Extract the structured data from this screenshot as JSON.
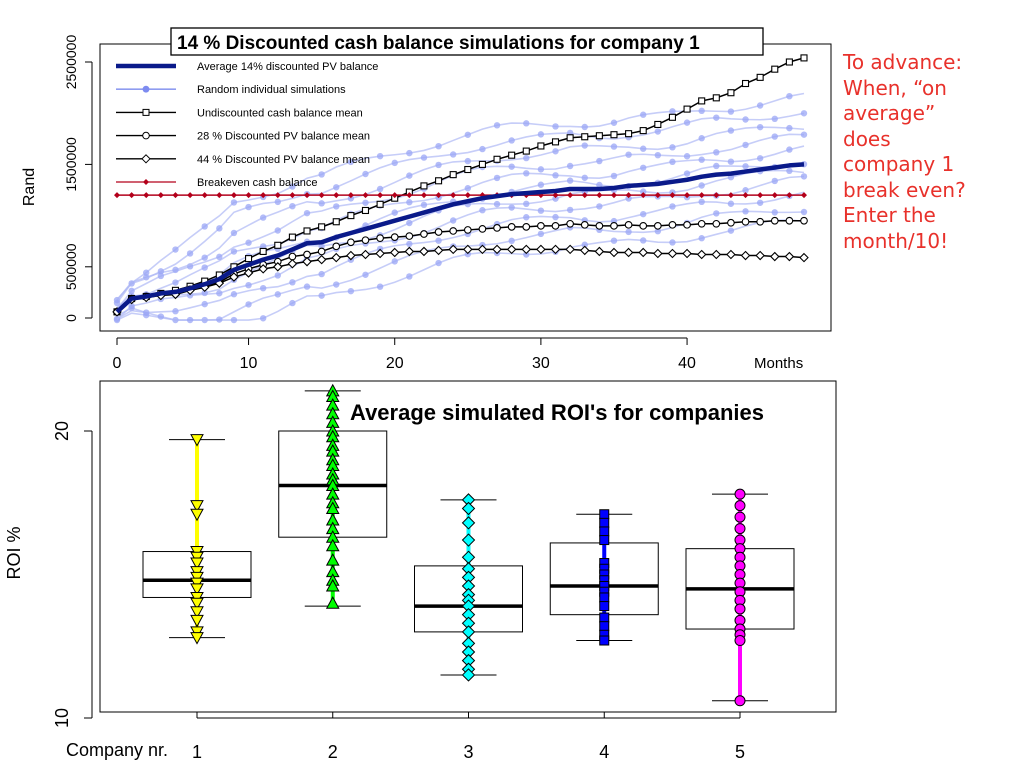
{
  "note": {
    "text": "To advance:\nWhen, “on\naverage”\ndoes\ncompany 1\nbreak even?\nEnter the\nmonth/10!",
    "color": "#e8312b"
  },
  "chart_data": [
    {
      "type": "line",
      "title": "14 % Discounted cash balance simulations for company  1",
      "xlabel": "Months",
      "ylabel": "Rand",
      "xlim": [
        0,
        48
      ],
      "ylim": [
        -50000,
        2600000
      ],
      "x_ticks": [
        0,
        10,
        20,
        30,
        40
      ],
      "y_ticks": [
        0,
        500000,
        1500000,
        2500000
      ],
      "y_tick_labels": [
        "0",
        "500000",
        "1500000",
        "2500000"
      ],
      "legend": {
        "position": "top-left",
        "entries": [
          "Average 14% discounted PV balance",
          "Random individual simulations",
          "Undiscounted cash balance mean",
          "28 % Discounted PV balance mean",
          "44 % Discounted PV balance mean",
          "Breakeven cash balance"
        ]
      },
      "breakeven": 1200000,
      "series": [
        {
          "name": "Average 14% discounted PV balance",
          "color": "#0a1a8a",
          "x": [
            1,
            2,
            3,
            4,
            5,
            6,
            7,
            8,
            9,
            10,
            11,
            12,
            13,
            14,
            15,
            16,
            17,
            18,
            19,
            20,
            21,
            22,
            23,
            24,
            25,
            26,
            27,
            28,
            29,
            30,
            31,
            32,
            33,
            34,
            35,
            36,
            37,
            38,
            39,
            40,
            41,
            42,
            43,
            44,
            45,
            46,
            47,
            48
          ],
          "values": [
            60000,
            190000,
            210000,
            240000,
            255000,
            290000,
            330000,
            380000,
            470000,
            520000,
            570000,
            610000,
            670000,
            730000,
            740000,
            790000,
            830000,
            870000,
            910000,
            950000,
            990000,
            1030000,
            1070000,
            1110000,
            1140000,
            1170000,
            1190000,
            1210000,
            1220000,
            1230000,
            1240000,
            1260000,
            1260000,
            1260000,
            1270000,
            1290000,
            1300000,
            1310000,
            1330000,
            1350000,
            1380000,
            1400000,
            1410000,
            1430000,
            1450000,
            1470000,
            1490000,
            1500000
          ]
        },
        {
          "name": "Undiscounted cash balance mean",
          "color": "#000000",
          "x": [
            1,
            2,
            3,
            4,
            5,
            6,
            7,
            8,
            9,
            10,
            11,
            12,
            13,
            14,
            15,
            16,
            17,
            18,
            19,
            20,
            21,
            22,
            23,
            24,
            25,
            26,
            27,
            28,
            29,
            30,
            31,
            32,
            33,
            34,
            35,
            36,
            37,
            38,
            39,
            40,
            41,
            42,
            43,
            44,
            45,
            46,
            47,
            48
          ],
          "values": [
            60000,
            190000,
            210000,
            240000,
            270000,
            310000,
            360000,
            420000,
            500000,
            580000,
            650000,
            710000,
            790000,
            850000,
            890000,
            940000,
            1000000,
            1050000,
            1110000,
            1170000,
            1230000,
            1290000,
            1340000,
            1400000,
            1450000,
            1500000,
            1550000,
            1590000,
            1630000,
            1680000,
            1720000,
            1760000,
            1770000,
            1780000,
            1790000,
            1800000,
            1830000,
            1890000,
            1960000,
            2040000,
            2120000,
            2150000,
            2200000,
            2290000,
            2350000,
            2430000,
            2500000,
            2540000
          ]
        },
        {
          "name": "28 % Discounted PV balance mean",
          "color": "#000000",
          "x": [
            1,
            2,
            3,
            4,
            5,
            6,
            7,
            8,
            9,
            10,
            11,
            12,
            13,
            14,
            15,
            16,
            17,
            18,
            19,
            20,
            21,
            22,
            23,
            24,
            25,
            26,
            27,
            28,
            29,
            30,
            31,
            32,
            33,
            34,
            35,
            36,
            37,
            38,
            39,
            40,
            41,
            42,
            43,
            44,
            45,
            46,
            47,
            48
          ],
          "values": [
            60000,
            190000,
            210000,
            230000,
            240000,
            280000,
            310000,
            350000,
            430000,
            480000,
            520000,
            550000,
            600000,
            620000,
            650000,
            700000,
            740000,
            760000,
            780000,
            790000,
            800000,
            820000,
            840000,
            850000,
            860000,
            870000,
            880000,
            890000,
            890000,
            900000,
            900000,
            920000,
            910000,
            900000,
            900000,
            910000,
            900000,
            900000,
            910000,
            910000,
            920000,
            920000,
            930000,
            940000,
            940000,
            950000,
            950000,
            950000
          ]
        },
        {
          "name": "44 % Discounted PV balance mean",
          "color": "#000000",
          "x": [
            1,
            2,
            3,
            4,
            5,
            6,
            7,
            8,
            9,
            10,
            11,
            12,
            13,
            14,
            15,
            16,
            17,
            18,
            19,
            20,
            21,
            22,
            23,
            24,
            25,
            26,
            27,
            28,
            29,
            30,
            31,
            32,
            33,
            34,
            35,
            36,
            37,
            38,
            39,
            40,
            41,
            42,
            43,
            44,
            45,
            46,
            47,
            48
          ],
          "values": [
            60000,
            180000,
            200000,
            220000,
            230000,
            270000,
            300000,
            340000,
            400000,
            440000,
            480000,
            500000,
            530000,
            550000,
            570000,
            590000,
            610000,
            620000,
            630000,
            640000,
            650000,
            650000,
            660000,
            670000,
            670000,
            670000,
            670000,
            670000,
            670000,
            670000,
            670000,
            670000,
            660000,
            650000,
            640000,
            640000,
            640000,
            630000,
            630000,
            630000,
            620000,
            620000,
            620000,
            610000,
            610000,
            600000,
            600000,
            590000
          ]
        },
        {
          "name": "Breakeven cash balance",
          "color": "#b3001b",
          "x": [
            1,
            2,
            3,
            4,
            5,
            6,
            7,
            8,
            9,
            10,
            11,
            12,
            13,
            14,
            15,
            16,
            17,
            18,
            19,
            20,
            21,
            22,
            23,
            24,
            25,
            26,
            27,
            28,
            29,
            30,
            31,
            32,
            33,
            34,
            35,
            36,
            37,
            38,
            39,
            40,
            41,
            42,
            43,
            44,
            45,
            46,
            47,
            48
          ],
          "values": [
            1200000,
            1200000,
            1200000,
            1200000,
            1200000,
            1200000,
            1200000,
            1200000,
            1200000,
            1200000,
            1200000,
            1200000,
            1200000,
            1200000,
            1200000,
            1200000,
            1200000,
            1200000,
            1200000,
            1200000,
            1200000,
            1200000,
            1200000,
            1200000,
            1200000,
            1200000,
            1200000,
            1200000,
            1200000,
            1200000,
            1200000,
            1200000,
            1200000,
            1200000,
            1200000,
            1200000,
            1200000,
            1200000,
            1200000,
            1200000,
            1200000,
            1200000,
            1200000,
            1200000,
            1200000,
            1200000,
            1200000,
            1200000
          ]
        }
      ]
    },
    {
      "type": "box",
      "title": "Average simulated ROI's for companies",
      "xlabel": "Company nr.",
      "ylabel": "ROI %",
      "ylim": [
        9.8,
        21.5
      ],
      "y_ticks": [
        10,
        20
      ],
      "categories": [
        "1",
        "2",
        "3",
        "4",
        "5"
      ],
      "boxes": [
        {
          "q1": 14.2,
          "median": 14.8,
          "q3": 15.8,
          "whisker_low": 12.8,
          "whisker_high": 19.7,
          "color": "#ffff00",
          "marker": "triangle-down",
          "points": [
            19.7,
            17.4,
            17.1,
            15.8,
            15.6,
            15.4,
            15.1,
            14.9,
            14.7,
            14.5,
            14.2,
            14.0,
            13.7,
            13.4,
            13.0,
            12.8
          ]
        },
        {
          "q1": 16.3,
          "median": 18.1,
          "q3": 20.0,
          "whisker_low": 13.9,
          "whisker_high": 21.4,
          "color": "#00ff00",
          "marker": "triangle-up",
          "points": [
            21.4,
            21.2,
            20.9,
            20.6,
            20.3,
            20.0,
            19.8,
            19.5,
            19.3,
            19.0,
            18.8,
            18.5,
            18.3,
            18.1,
            17.8,
            17.5,
            17.3,
            16.9,
            16.6,
            16.3,
            16.0,
            15.5,
            15.1,
            14.8,
            14.6,
            14.0
          ]
        },
        {
          "q1": 13.0,
          "median": 13.9,
          "q3": 15.3,
          "whisker_low": 11.5,
          "whisker_high": 17.6,
          "color": "#00ffff",
          "marker": "diamond",
          "points": [
            17.6,
            17.3,
            16.8,
            16.2,
            15.6,
            15.2,
            14.9,
            14.6,
            14.3,
            14.1,
            13.9,
            13.6,
            13.3,
            13.0,
            12.6,
            12.3,
            12.0,
            11.7,
            11.5
          ]
        },
        {
          "q1": 13.6,
          "median": 14.6,
          "q3": 16.1,
          "whisker_low": 12.7,
          "whisker_high": 17.1,
          "color": "#0000ff",
          "marker": "square",
          "points": [
            17.1,
            16.8,
            16.5,
            16.2,
            15.4,
            15.2,
            15.0,
            14.8,
            14.6,
            14.4,
            14.2,
            13.9,
            13.5,
            13.2,
            12.9,
            12.7
          ]
        },
        {
          "q1": 13.1,
          "median": 14.5,
          "q3": 15.9,
          "whisker_low": 10.6,
          "whisker_high": 17.8,
          "color": "#ff00ff",
          "marker": "circle",
          "points": [
            17.8,
            17.4,
            17.0,
            16.6,
            16.2,
            15.9,
            15.6,
            15.3,
            15.0,
            14.7,
            14.4,
            14.1,
            13.8,
            13.4,
            13.1,
            12.9,
            12.7,
            10.6
          ]
        }
      ]
    }
  ]
}
